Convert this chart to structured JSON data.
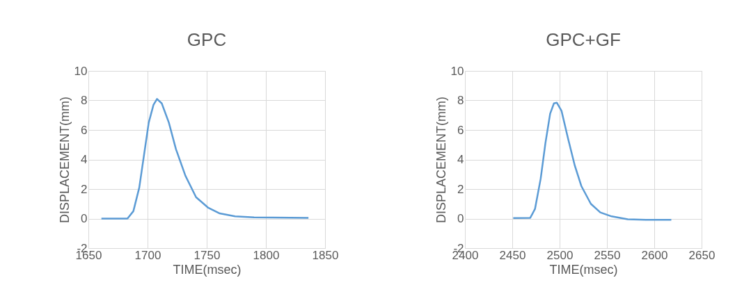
{
  "chart_data": [
    {
      "type": "line",
      "title": "GPC",
      "xlabel": "TIME(msec)",
      "ylabel": "DISPLACEMENT(mm)",
      "xlim": [
        1650,
        1850
      ],
      "xticks": [
        1650,
        1700,
        1750,
        1800,
        1850
      ],
      "ylim": [
        -2,
        10
      ],
      "yticks": [
        -2,
        0,
        2,
        4,
        6,
        8,
        10
      ],
      "grid": true,
      "marker": "none",
      "line_style": "solid",
      "series": [
        {
          "color": "#5b9bd5",
          "x": [
            1661,
            1683,
            1688,
            1693,
            1697,
            1701,
            1705,
            1708,
            1712,
            1718,
            1724,
            1732,
            1741,
            1751,
            1761,
            1774,
            1790,
            1836
          ],
          "values": [
            0,
            0,
            0.5,
            2.1,
            4.3,
            6.5,
            7.7,
            8.1,
            7.8,
            6.5,
            4.7,
            2.9,
            1.45,
            0.75,
            0.35,
            0.15,
            0.08,
            0.05
          ]
        }
      ]
    },
    {
      "type": "line",
      "title": "GPC+GF",
      "xlabel": "TIME(msec)",
      "ylabel": "DISPLACEMENT(mm)",
      "xlim": [
        2400,
        2650
      ],
      "xticks": [
        2400,
        2450,
        2500,
        2550,
        2600,
        2650
      ],
      "ylim": [
        -2,
        10
      ],
      "yticks": [
        -2,
        0,
        2,
        4,
        6,
        8,
        10
      ],
      "grid": true,
      "marker": "none",
      "line_style": "solid",
      "series": [
        {
          "color": "#5b9bd5",
          "x": [
            2451,
            2469,
            2474,
            2480,
            2485,
            2490,
            2494,
            2497,
            2502,
            2509,
            2516,
            2523,
            2533,
            2543,
            2555,
            2572,
            2591,
            2618
          ],
          "values": [
            0.03,
            0.05,
            0.65,
            2.7,
            5.1,
            7.1,
            7.8,
            7.85,
            7.3,
            5.4,
            3.6,
            2.2,
            1.0,
            0.42,
            0.15,
            -0.05,
            -0.08,
            -0.08
          ]
        }
      ]
    }
  ]
}
